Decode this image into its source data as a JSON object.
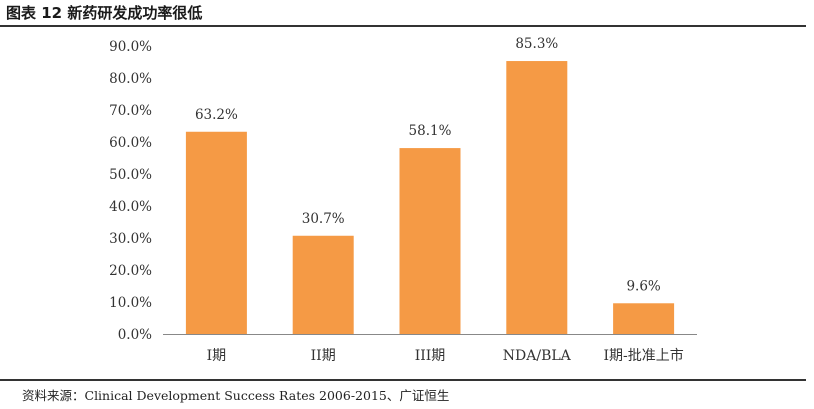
{
  "figure_title": "图表 12  新药研发成功率很低",
  "source_note": "资料来源：Clinical Development Success Rates 2006-2015、广证恒生",
  "colors": {
    "bar": "#F59A45",
    "axis": "#888888",
    "rule": "#333333"
  },
  "chart_data": {
    "type": "bar",
    "title": "",
    "xlabel": "",
    "ylabel": "",
    "categories": [
      "I期",
      "II期",
      "III期",
      "NDA/BLA",
      "I期-批准上市"
    ],
    "values": [
      63.2,
      30.7,
      58.1,
      85.3,
      9.6
    ],
    "data_labels": [
      "63.2%",
      "30.7%",
      "58.1%",
      "85.3%",
      "9.6%"
    ],
    "ylim": [
      0,
      90
    ],
    "yticks": [
      0,
      10,
      20,
      30,
      40,
      50,
      60,
      70,
      80,
      90
    ],
    "ytick_labels": [
      "0.0%",
      "10.0%",
      "20.0%",
      "30.0%",
      "40.0%",
      "50.0%",
      "60.0%",
      "70.0%",
      "80.0%",
      "90.0%"
    ],
    "grid": false,
    "legend": "none"
  }
}
